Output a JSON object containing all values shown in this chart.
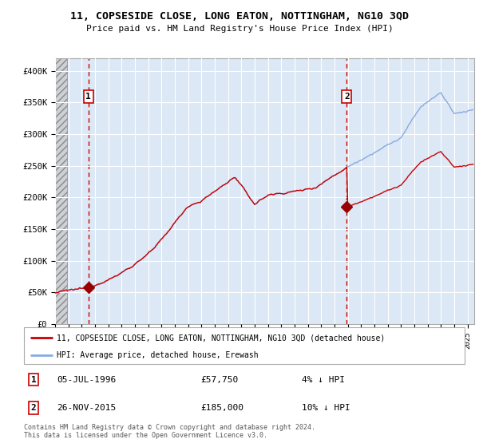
{
  "title": "11, COPSESIDE CLOSE, LONG EATON, NOTTINGHAM, NG10 3QD",
  "subtitle": "Price paid vs. HM Land Registry's House Price Index (HPI)",
  "ylim": [
    0,
    420000
  ],
  "xlim_start": 1994.0,
  "xlim_end": 2025.5,
  "yticks": [
    0,
    50000,
    100000,
    150000,
    200000,
    250000,
    300000,
    350000,
    400000
  ],
  "ytick_labels": [
    "£0",
    "£50K",
    "£100K",
    "£150K",
    "£200K",
    "£250K",
    "£300K",
    "£350K",
    "£400K"
  ],
  "purchase1_year": 1996.5,
  "purchase1_price": 57750,
  "purchase1_label": "1",
  "purchase1_date": "05-JUL-1996",
  "purchase1_pct": "4% ↓ HPI",
  "purchase2_year": 2015.92,
  "purchase2_price": 185000,
  "purchase2_label": "2",
  "purchase2_date": "26-NOV-2015",
  "purchase2_pct": "10% ↓ HPI",
  "price_line_color": "#cc0000",
  "hpi_line_color": "#88aadd",
  "marker_color": "#990000",
  "vline_color": "#cc0000",
  "annotation_box_color": "#cc0000",
  "legend_label_price": "11, COPSESIDE CLOSE, LONG EATON, NOTTINGHAM, NG10 3QD (detached house)",
  "legend_label_hpi": "HPI: Average price, detached house, Erewash",
  "footnote": "Contains HM Land Registry data © Crown copyright and database right 2024.\nThis data is licensed under the Open Government Licence v3.0.",
  "background_color": "#ffffff",
  "plot_bg_color": "#dce8f5",
  "grid_color": "#ffffff",
  "hatch_region_end": 1994.92
}
